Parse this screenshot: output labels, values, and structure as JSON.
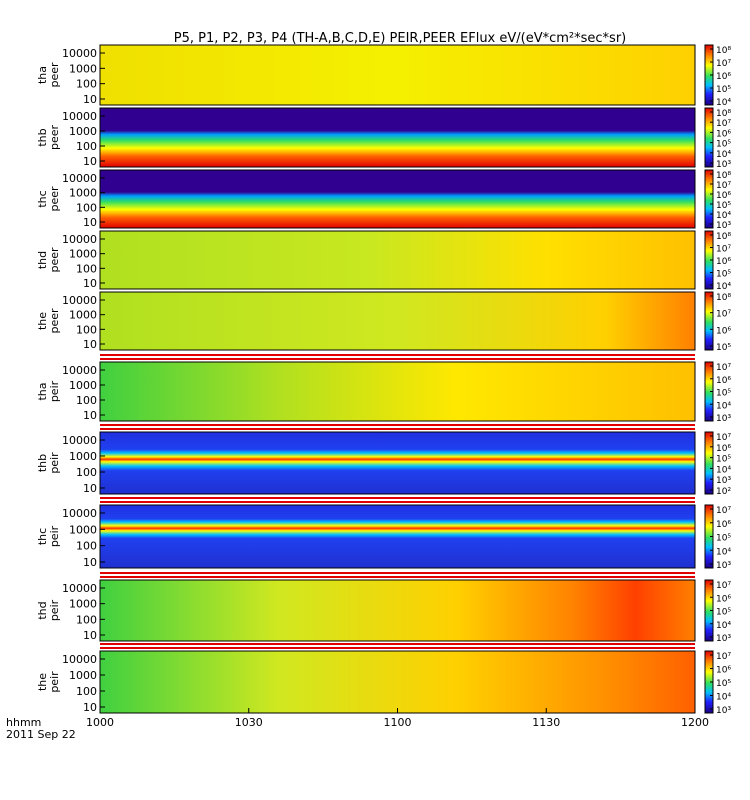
{
  "chart_data": {
    "type": "heatmap",
    "title": "P5, P1, P2, P3, P4 (TH-A,B,C,D,E) PEIR,PEER EFlux eV/(eV*cm²*sec*sr)",
    "xlabel_line1": "hhmm",
    "xlabel_line2": "2011 Sep 22",
    "x_ticks": [
      "1000",
      "1030",
      "1100",
      "1130",
      "1200"
    ],
    "x_range": [
      "10:00",
      "12:00"
    ],
    "y_scale": "log",
    "panels": [
      {
        "ylabel": "tha\npeer",
        "y_ticks": [
          "10000",
          "1000",
          "100",
          "10"
        ],
        "cbar_ticks": [
          "10⁸",
          "10⁷",
          "10⁶",
          "10⁵",
          "10⁴"
        ]
      },
      {
        "ylabel": "thb\npeer",
        "y_ticks": [
          "10000",
          "1000",
          "100",
          "10"
        ],
        "cbar_ticks": [
          "10⁸",
          "10⁷",
          "10⁶",
          "10⁵",
          "10⁴",
          "10³"
        ]
      },
      {
        "ylabel": "thc\npeer",
        "y_ticks": [
          "10000",
          "1000",
          "100",
          "10"
        ],
        "cbar_ticks": [
          "10⁸",
          "10⁷",
          "10⁶",
          "10⁵",
          "10⁴",
          "10³"
        ]
      },
      {
        "ylabel": "thd\npeer",
        "y_ticks": [
          "10000",
          "1000",
          "100",
          "10"
        ],
        "cbar_ticks": [
          "10⁸",
          "10⁷",
          "10⁶",
          "10⁵",
          "10⁴"
        ]
      },
      {
        "ylabel": "the\npeer",
        "y_ticks": [
          "10000",
          "1000",
          "100",
          "10"
        ],
        "cbar_ticks": [
          "10⁸",
          "10⁷",
          "10⁶",
          "10⁵"
        ]
      },
      {
        "ylabel": "tha\npeir",
        "y_ticks": [
          "10000",
          "1000",
          "100",
          "10"
        ],
        "cbar_ticks": [
          "10⁷",
          "10⁶",
          "10⁵",
          "10⁴",
          "10³"
        ]
      },
      {
        "ylabel": "thb\npeir",
        "y_ticks": [
          "10000",
          "1000",
          "100",
          "10"
        ],
        "cbar_ticks": [
          "10⁷",
          "10⁶",
          "10⁵",
          "10⁴",
          "10³",
          "10²"
        ]
      },
      {
        "ylabel": "thc\npeir",
        "y_ticks": [
          "10000",
          "1000",
          "100",
          "10"
        ],
        "cbar_ticks": [
          "10⁷",
          "10⁶",
          "10⁵",
          "10⁴",
          "10³"
        ]
      },
      {
        "ylabel": "thd\npeir",
        "y_ticks": [
          "10000",
          "1000",
          "100",
          "10"
        ],
        "cbar_ticks": [
          "10⁷",
          "10⁶",
          "10⁵",
          "10⁴",
          "10³"
        ]
      },
      {
        "ylabel": "the\npeir",
        "y_ticks": [
          "10000",
          "1000",
          "100",
          "10"
        ],
        "cbar_ticks": [
          "10⁷",
          "10⁶",
          "10⁵",
          "10⁴",
          "10³"
        ]
      }
    ]
  }
}
